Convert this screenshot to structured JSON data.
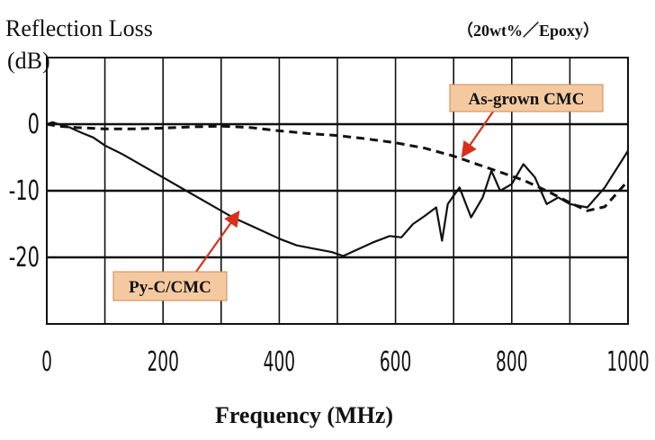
{
  "chart_data": {
    "type": "line",
    "title": "",
    "condition_note": "（20wt%／Epoxy）",
    "ylabel_line1": "Reflection Loss",
    "ylabel_line2": "(dB)",
    "xlabel": "Frequency (MHz)",
    "xlim": [
      0,
      1000
    ],
    "ylim": [
      -30,
      10
    ],
    "grid": true,
    "xticks": [
      0,
      200,
      400,
      600,
      800,
      1000
    ],
    "yticks": [
      0,
      -10,
      -20
    ],
    "series": [
      {
        "name": "As-grown CMC",
        "style": "dashed",
        "x": [
          0,
          20,
          50,
          100,
          150,
          200,
          250,
          300,
          350,
          400,
          450,
          500,
          550,
          600,
          650,
          700,
          740,
          780,
          820,
          860,
          900,
          930,
          960,
          1000
        ],
        "y": [
          0,
          -0.3,
          -0.5,
          -0.7,
          -0.7,
          -0.6,
          -0.4,
          -0.3,
          -0.5,
          -1.0,
          -1.4,
          -1.7,
          -2.2,
          -2.8,
          -3.6,
          -4.8,
          -6.0,
          -7.2,
          -8.4,
          -10.0,
          -11.8,
          -13.0,
          -12.4,
          -8.5
        ]
      },
      {
        "name": "Py-C/CMC",
        "style": "solid",
        "x": [
          0,
          10,
          20,
          40,
          60,
          80,
          100,
          130,
          160,
          200,
          240,
          280,
          320,
          360,
          400,
          430,
          460,
          490,
          510,
          530,
          560,
          590,
          610,
          630,
          650,
          670,
          680,
          690,
          710,
          730,
          750,
          765,
          780,
          800,
          820,
          840,
          860,
          880,
          900,
          930,
          960,
          1000
        ],
        "y": [
          0,
          0.3,
          0,
          -0.5,
          -1.3,
          -2.0,
          -3.2,
          -4.5,
          -6.0,
          -8.0,
          -10.0,
          -12.0,
          -14.0,
          -15.6,
          -17.2,
          -18.2,
          -18.7,
          -19.2,
          -19.8,
          -19.0,
          -17.8,
          -16.8,
          -17.0,
          -15.0,
          -13.8,
          -12.5,
          -17.5,
          -12.0,
          -9.5,
          -14.0,
          -11.0,
          -7.0,
          -10.0,
          -9.0,
          -6.0,
          -8.0,
          -12.0,
          -11.0,
          -12.0,
          -12.5,
          -9.5,
          -4.0
        ]
      }
    ],
    "annotations": [
      {
        "text": "As-grown CMC",
        "points_to_series": "As-grown CMC"
      },
      {
        "text": "Py-C/CMC",
        "points_to_series": "Py-C/CMC"
      }
    ],
    "colors": {
      "line": "#111111",
      "grid": "#111111",
      "annotation_box": "#f5c9a0",
      "annotation_border": "#c98a55",
      "arrow": "#d9301c"
    }
  }
}
